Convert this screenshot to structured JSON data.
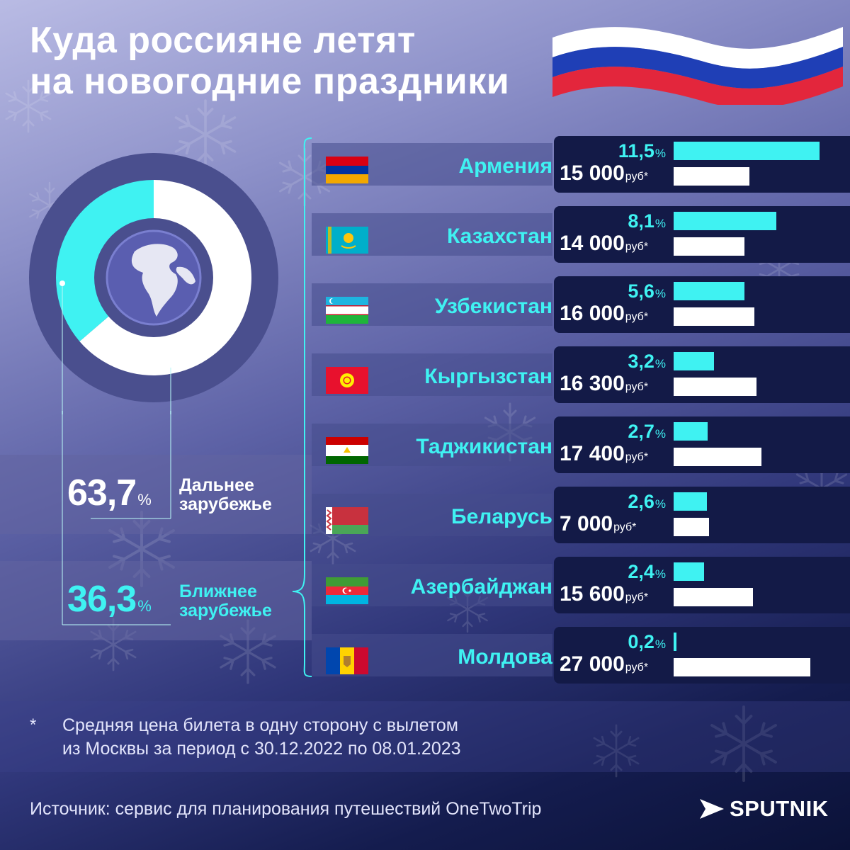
{
  "title": {
    "line1": "Куда россияне летят",
    "line2": "на новогодние праздники"
  },
  "colors": {
    "accent": "#3ff2f2",
    "price_bar": "#ffffff",
    "donut_far": "#ffffff",
    "donut_near": "#3ff2f2",
    "donut_ring": "#4a4f8e",
    "globe": "#5a5eb0",
    "flag_ribbon": [
      "#ffffff",
      "#1f3fb6",
      "#e3263c"
    ]
  },
  "shares": {
    "far": {
      "value": "63,7",
      "unit": "%",
      "label_line1": "Дальнее",
      "label_line2": "зарубежье"
    },
    "near": {
      "value": "36,3",
      "unit": "%",
      "label_line1": "Ближнее",
      "label_line2": "зарубежье"
    }
  },
  "price_unit": "руб*",
  "percent_unit": "%",
  "chart_data": [
    {
      "type": "pie",
      "labels": [
        "Дальнее зарубежье",
        "Ближнее зарубежье"
      ],
      "values": [
        63.7,
        36.3
      ]
    },
    {
      "type": "bar",
      "categories": [
        "Армения",
        "Казахстан",
        "Узбекистан",
        "Кыргызстан",
        "Таджикистан",
        "Беларусь",
        "Азербайджан",
        "Молдова"
      ],
      "series": [
        {
          "values": [
            11.5,
            8.1,
            5.6,
            3.2,
            2.7,
            2.6,
            2.4,
            0.2
          ]
        },
        {
          "values": [
            15000,
            14000,
            16000,
            16300,
            17400,
            7000,
            15600,
            27000
          ]
        }
      ],
      "share_labels": [
        "11,5",
        "8,1",
        "5,6",
        "3,2",
        "2,7",
        "2,6",
        "2,4",
        "0,2"
      ],
      "price_labels": [
        "15 000",
        "14 000",
        "16 000",
        "16 300",
        "17 400",
        "7 000",
        "15 600",
        "27 000"
      ],
      "flag_icons": [
        "flag-armenia-icon",
        "flag-kazakhstan-icon",
        "flag-uzbekistan-icon",
        "flag-kyrgyzstan-icon",
        "flag-tajikistan-icon",
        "flag-belarus-icon",
        "flag-azerbaijan-icon",
        "flag-moldova-icon"
      ]
    }
  ],
  "footnote": {
    "marker": "*",
    "line1": "Средняя цена билета в одну сторону с вылетом",
    "line2": "из Москвы за период с 30.12.2022 по 08.01.2023"
  },
  "source": "Источник: сервис для планирования путешествий OneTwoTrip",
  "logo": "SPUTNIK"
}
